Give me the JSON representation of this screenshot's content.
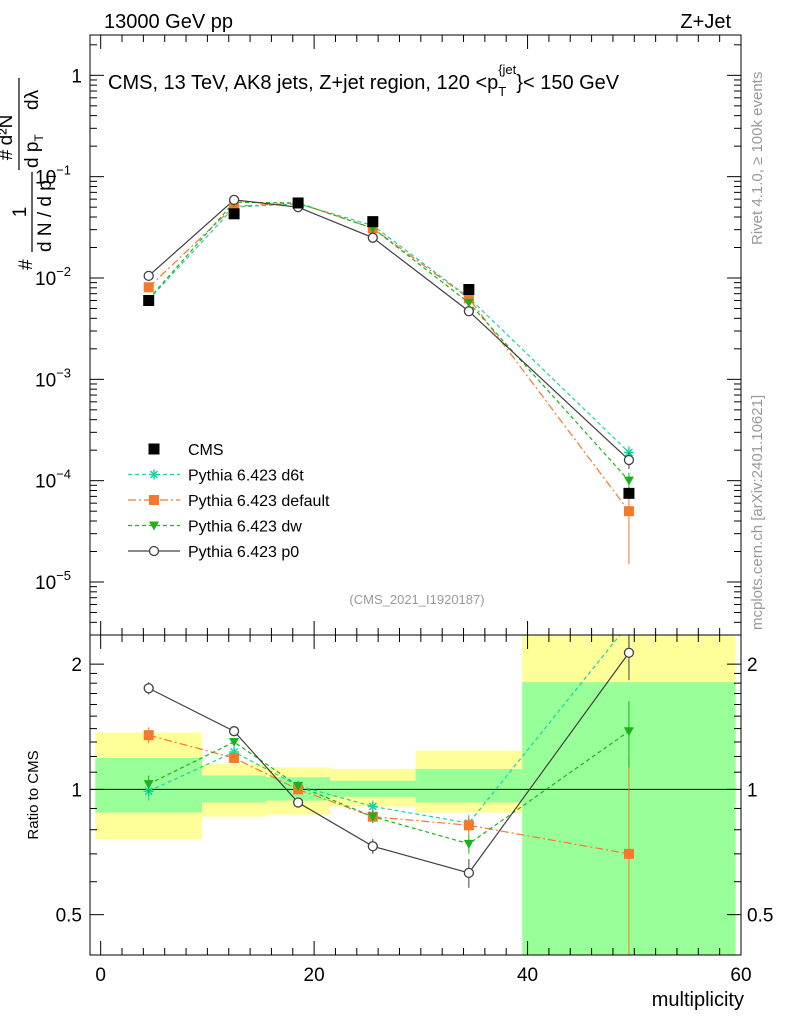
{
  "header": {
    "left": "13000 GeV pp",
    "right": "Z+Jet"
  },
  "side_labels": {
    "rivet": "Rivet 4.1.0, ≥ 100k events",
    "mcplots": "mcplots.cern.ch [arXiv:2401.10621]"
  },
  "colors": {
    "cms": "#000000",
    "d6t": "#1ad3a3",
    "default": "#f5782d",
    "dw": "#1ab31a",
    "p0": "#404040",
    "band_outer": "#ffff99",
    "band_inner": "#99ff99"
  },
  "chart_data": [
    {
      "type": "line",
      "title": "CMS, 13 TeV, AK8 jets, Z+jet region, 120 <p_T^{jet}< 150 GeV",
      "title_parts": {
        "main": "CMS, 13 TeV, AK8 jets, Z+jet region, 120 <p",
        "sub": "T",
        "sup": "{jet",
        "tail": "}< 150 GeV"
      },
      "ylabel": "1/(dN/dp_T) d²N/(dp_T dλ)",
      "ylabel_parts": {
        "hash": "#",
        "one": "1",
        "dN": "d N / d p",
        "T": "T",
        "d2N": "d²N",
        "dpT": "d p",
        "dl": "dλ"
      },
      "yscale": "log",
      "ylim": [
        3e-06,
        2.5
      ],
      "xlim": [
        -1,
        60
      ],
      "grid": false,
      "y_ticks": [
        {
          "value": 1,
          "label": "1"
        },
        {
          "value": 0.1,
          "label": "10",
          "exp": "−1"
        },
        {
          "value": 0.01,
          "label": "10",
          "exp": "−2"
        },
        {
          "value": 0.001,
          "label": "10",
          "exp": "−3"
        },
        {
          "value": 0.0001,
          "label": "10",
          "exp": "−4"
        },
        {
          "value": 1e-05,
          "label": "10",
          "exp": "−5"
        }
      ],
      "watermark": "(CMS_2021_I1920187)",
      "legend_position": "bottom-left",
      "data": {
        "name": "CMS",
        "x": [
          4.5,
          12.5,
          18.5,
          25.5,
          34.5,
          49.5
        ],
        "y": [
          0.006,
          0.043,
          0.055,
          0.036,
          0.0077,
          7.5e-05
        ],
        "yerr": [
          0.0004,
          0.002,
          0.002,
          0.0015,
          0.0004,
          8e-06
        ]
      },
      "series": [
        {
          "name": "Pythia 6.423 d6t",
          "key": "d6t",
          "marker": "star",
          "dash": "4,3",
          "x": [
            4.5,
            12.5,
            18.5,
            25.5,
            34.5,
            49.5
          ],
          "y": [
            0.0061,
            0.05,
            0.054,
            0.033,
            0.0064,
            0.00019
          ],
          "yerr": [
            0.0002,
            0.001,
            0.001,
            0.0008,
            0.0003,
            3e-05
          ]
        },
        {
          "name": "Pythia 6.423 default",
          "key": "default",
          "marker": "square",
          "dash": "8,3,2,3",
          "x": [
            4.5,
            12.5,
            18.5,
            25.5,
            34.5,
            49.5
          ],
          "y": [
            0.0081,
            0.051,
            0.055,
            0.031,
            0.0063,
            5e-05
          ],
          "yerr": [
            0.0003,
            0.001,
            0.001,
            0.0008,
            0.0003,
            3.5e-05
          ]
        },
        {
          "name": "Pythia 6.423 dw",
          "key": "dw",
          "marker": "triangle-down",
          "dash": "4,3",
          "x": [
            4.5,
            12.5,
            18.5,
            25.5,
            34.5,
            49.5
          ],
          "y": [
            0.0062,
            0.056,
            0.055,
            0.031,
            0.0057,
            0.0001
          ],
          "yerr": [
            0.0002,
            0.001,
            0.001,
            0.0008,
            0.0003,
            2e-05
          ]
        },
        {
          "name": "Pythia 6.423 p0",
          "key": "p0",
          "marker": "circle-open",
          "dash": "",
          "x": [
            4.5,
            12.5,
            18.5,
            25.5,
            34.5,
            49.5
          ],
          "y": [
            0.0105,
            0.059,
            0.05,
            0.025,
            0.0047,
            0.00016
          ],
          "yerr": [
            0.0004,
            0.001,
            0.001,
            0.0006,
            0.0002,
            3e-05
          ]
        }
      ]
    },
    {
      "type": "line",
      "ylabel": "Ratio to CMS",
      "xlabel": "multiplicity",
      "yscale": "log",
      "ylim": [
        0.4,
        2.35
      ],
      "xlim": [
        -1,
        60
      ],
      "y_ticks": [
        {
          "value": 0.5,
          "label": "0.5"
        },
        {
          "value": 1,
          "label": "1"
        },
        {
          "value": 2,
          "label": "2"
        }
      ],
      "x_ticks": [
        {
          "value": 0,
          "label": "0"
        },
        {
          "value": 20,
          "label": "20"
        },
        {
          "value": 40,
          "label": "40"
        },
        {
          "value": 60,
          "label": "60"
        }
      ],
      "bands": [
        {
          "x0": -0.5,
          "x1": 9.5,
          "outer": [
            0.76,
            1.37
          ],
          "inner": [
            0.88,
            1.19
          ]
        },
        {
          "x0": 9.5,
          "x1": 15.5,
          "outer": [
            0.86,
            1.15
          ],
          "inner": [
            0.93,
            1.08
          ]
        },
        {
          "x0": 15.5,
          "x1": 21.5,
          "outer": [
            0.87,
            1.13
          ],
          "inner": [
            0.94,
            1.07
          ]
        },
        {
          "x0": 21.5,
          "x1": 29.5,
          "outer": [
            0.91,
            1.12
          ],
          "inner": [
            0.96,
            1.05
          ]
        },
        {
          "x0": 29.5,
          "x1": 39.5,
          "outer": [
            0.88,
            1.24
          ],
          "inner": [
            0.93,
            1.12
          ]
        },
        {
          "x0": 39.5,
          "x1": 59.5,
          "outer": [
            0.35,
            2.35
          ],
          "inner": [
            0.35,
            1.81
          ]
        }
      ],
      "series": [
        {
          "name": "Pythia 6.423 d6t",
          "key": "d6t",
          "marker": "star",
          "dash": "4,3",
          "x": [
            4.5,
            12.5,
            18.5,
            25.5,
            34.5,
            49.5
          ],
          "y": [
            0.99,
            1.23,
            1.02,
            0.91,
            0.83,
            2.5
          ],
          "yerr": [
            0.05,
            0.03,
            0.02,
            0.03,
            0.04,
            0.3
          ]
        },
        {
          "name": "Pythia 6.423 default",
          "key": "default",
          "marker": "square",
          "dash": "8,3,2,3",
          "x": [
            4.5,
            12.5,
            18.5,
            25.5,
            34.5,
            49.5
          ],
          "y": [
            1.35,
            1.19,
            1.0,
            0.86,
            0.82,
            0.7
          ],
          "yerr": [
            0.06,
            0.03,
            0.02,
            0.03,
            0.04,
            0.5
          ]
        },
        {
          "name": "Pythia 6.423 dw",
          "key": "dw",
          "marker": "triangle-down",
          "dash": "4,3",
          "x": [
            4.5,
            12.5,
            18.5,
            25.5,
            34.5,
            49.5
          ],
          "y": [
            1.03,
            1.3,
            1.02,
            0.86,
            0.74,
            1.38
          ],
          "yerr": [
            0.05,
            0.03,
            0.02,
            0.03,
            0.04,
            0.25
          ]
        },
        {
          "name": "Pythia 6.423 p0",
          "key": "p0",
          "marker": "circle-open",
          "dash": "",
          "x": [
            4.5,
            12.5,
            18.5,
            25.5,
            34.5,
            49.5
          ],
          "y": [
            1.75,
            1.38,
            0.93,
            0.73,
            0.63,
            2.13
          ],
          "yerr": [
            0.06,
            0.03,
            0.02,
            0.03,
            0.05,
            0.3
          ]
        }
      ]
    }
  ]
}
